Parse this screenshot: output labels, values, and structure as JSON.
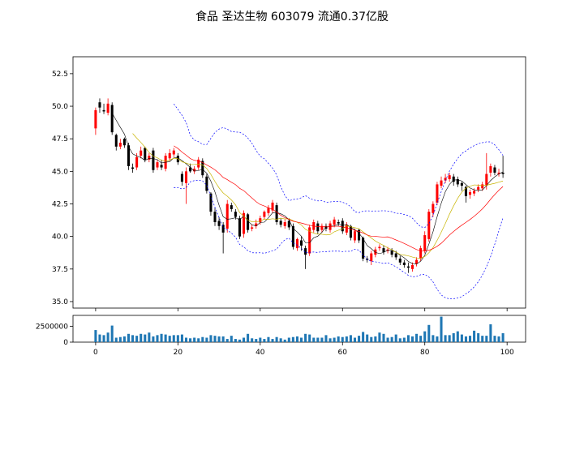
{
  "title": "食品 圣达生物 603079 流通0.37亿股",
  "chart_data": {
    "type": "candlestick",
    "title": "食品 圣达生物 603079 流通0.37亿股",
    "x_ticks": [
      0,
      20,
      40,
      60,
      80,
      100
    ],
    "y_ticks": [
      35.0,
      37.5,
      40.0,
      42.5,
      45.0,
      47.5,
      50.0,
      52.5
    ],
    "y_tick_labels": [
      "35.0",
      "37.5",
      "40.0",
      "42.5",
      "45.0",
      "47.5",
      "50.0",
      "52.5"
    ],
    "ylim": [
      34.5,
      53.8
    ],
    "xlim": [
      -5.5,
      104.5
    ],
    "volume_ticks": [
      0,
      2500000
    ],
    "volume_tick_labels": [
      "0",
      "2500000"
    ],
    "volume_ylim": [
      0,
      4200000
    ],
    "colors": {
      "up": "#ff0000",
      "down": "#000000",
      "volume": "#1f77b4",
      "ma_short": "#000000",
      "ma_mid": "#c8b400",
      "ma_long": "#ff0000",
      "bollinger": "#0000ff"
    },
    "close": [
      49.7,
      49.9,
      49.6,
      50.2,
      48.0,
      46.9,
      47.2,
      47.0,
      45.4,
      45.2,
      46.1,
      46.6,
      45.9,
      46.2,
      45.1,
      45.7,
      45.3,
      46.2,
      46.4,
      46.6,
      45.7,
      44.2,
      45.0,
      45.0,
      45.2,
      45.9,
      44.7,
      43.5,
      41.9,
      41.1,
      40.8,
      40.3,
      42.5,
      42.1,
      41.5,
      40.0,
      41.8,
      40.5,
      40.7,
      41.0,
      41.4,
      41.9,
      42.2,
      42.6,
      41.1,
      40.9,
      41.1,
      40.7,
      39.2,
      39.8,
      39.3,
      38.6,
      40.7,
      41.1,
      40.4,
      40.8,
      40.6,
      41.0,
      41.3,
      41.0,
      40.4,
      40.9,
      39.9,
      40.4,
      39.7,
      38.3,
      38.2,
      38.7,
      39.0,
      39.2,
      38.8,
      39.0,
      38.6,
      38.4,
      38.0,
      37.8,
      37.6,
      37.8,
      38.2,
      39.1,
      40.1,
      41.9,
      42.5,
      44.0,
      44.3,
      44.5,
      44.7,
      44.2,
      44.0,
      43.9,
      43.1,
      43.4,
      43.5,
      43.8,
      44.0,
      44.8,
      45.4,
      44.9,
      44.9,
      44.8
    ],
    "open": [
      48.3,
      50.3,
      49.7,
      49.5,
      50.1,
      47.8,
      46.9,
      47.5,
      47.0,
      45.3,
      45.3,
      46.2,
      46.8,
      45.9,
      46.6,
      45.3,
      45.5,
      45.2,
      46.0,
      46.3,
      46.2,
      44.8,
      44.1,
      45.3,
      45.0,
      45.3,
      45.8,
      44.6,
      43.3,
      41.9,
      41.2,
      40.9,
      40.6,
      42.4,
      41.9,
      41.4,
      40.2,
      41.7,
      40.6,
      40.8,
      41.1,
      41.5,
      41.8,
      42.0,
      42.4,
      41.2,
      40.8,
      41.2,
      40.8,
      39.1,
      39.7,
      39.1,
      38.7,
      40.5,
      41.0,
      40.5,
      40.8,
      40.5,
      40.9,
      41.1,
      41.2,
      40.3,
      40.8,
      39.7,
      40.5,
      39.9,
      38.3,
      38.1,
      38.6,
      39.1,
      39.1,
      38.9,
      38.9,
      38.7,
      38.3,
      38.0,
      37.7,
      37.5,
      37.9,
      38.3,
      38.9,
      39.8,
      41.8,
      42.6,
      43.9,
      44.3,
      44.4,
      44.6,
      44.4,
      44.1,
      43.8,
      43.2,
      43.3,
      43.6,
      43.7,
      43.9,
      44.9,
      45.3,
      44.8,
      44.9
    ],
    "high": [
      49.9,
      50.6,
      50.2,
      50.6,
      50.3,
      47.9,
      47.5,
      47.6,
      47.2,
      45.6,
      46.4,
      46.9,
      46.9,
      46.4,
      46.8,
      45.9,
      45.9,
      46.4,
      46.7,
      46.8,
      46.4,
      45.0,
      45.3,
      45.6,
      45.4,
      46.1,
      46.0,
      44.8,
      43.4,
      42.2,
      41.5,
      41.1,
      42.8,
      42.6,
      42.1,
      41.6,
      42.0,
      41.8,
      40.9,
      41.3,
      41.6,
      42.0,
      42.4,
      42.8,
      42.6,
      41.4,
      41.3,
      41.4,
      41.0,
      39.9,
      40.0,
      39.3,
      40.9,
      41.3,
      41.2,
      41.0,
      41.0,
      41.2,
      41.5,
      41.3,
      41.4,
      41.1,
      40.9,
      40.6,
      40.6,
      40.0,
      38.5,
      38.9,
      39.2,
      39.4,
      39.3,
      39.2,
      39.1,
      38.9,
      38.5,
      38.2,
      38.0,
      38.0,
      38.4,
      39.3,
      40.4,
      42.1,
      42.7,
      44.2,
      44.6,
      44.8,
      44.9,
      44.8,
      44.6,
      44.2,
      43.9,
      43.6,
      43.7,
      44.0,
      44.2,
      46.4,
      45.6,
      45.5,
      45.2,
      46.2
    ],
    "low": [
      47.8,
      49.5,
      49.4,
      49.3,
      47.8,
      46.6,
      46.7,
      46.8,
      45.1,
      44.9,
      45.1,
      46.0,
      45.7,
      45.7,
      44.9,
      45.1,
      45.1,
      45.0,
      45.8,
      46.1,
      45.5,
      43.9,
      42.5,
      44.9,
      44.8,
      45.1,
      44.5,
      43.3,
      41.6,
      40.8,
      40.5,
      38.7,
      40.3,
      41.9,
      41.3,
      39.8,
      39.9,
      40.3,
      40.4,
      40.6,
      40.9,
      41.3,
      41.6,
      41.8,
      40.9,
      40.7,
      40.6,
      40.5,
      39.0,
      38.9,
      38.9,
      37.5,
      38.5,
      40.3,
      40.2,
      40.3,
      40.4,
      40.3,
      40.7,
      40.8,
      40.2,
      40.1,
      39.7,
      39.5,
      39.5,
      38.1,
      38.0,
      37.8,
      38.4,
      38.9,
      38.6,
      38.7,
      38.4,
      38.2,
      37.8,
      37.6,
      37.2,
      37.3,
      37.7,
      38.1,
      38.7,
      39.6,
      41.5,
      42.4,
      43.7,
      44.1,
      44.2,
      43.9,
      43.8,
      43.5,
      42.6,
      42.9,
      43.1,
      43.4,
      43.5,
      43.6,
      44.6,
      44.7,
      44.6,
      44.5
    ],
    "volume": [
      1900000,
      1200000,
      1100000,
      1500000,
      2600000,
      700000,
      800000,
      900000,
      1300000,
      1100000,
      1000000,
      1300000,
      1200000,
      1500000,
      900000,
      1100000,
      1300000,
      1200000,
      1000000,
      1100000,
      1100000,
      1200000,
      700000,
      600000,
      700000,
      600000,
      800000,
      700000,
      1100000,
      1000000,
      900000,
      900000,
      500000,
      1000000,
      500000,
      400000,
      700000,
      1300000,
      600000,
      500000,
      700000,
      500000,
      800000,
      500000,
      800000,
      600000,
      400000,
      700000,
      800000,
      900000,
      700000,
      1300000,
      1200000,
      700000,
      700000,
      700000,
      1100000,
      600000,
      700000,
      900000,
      800000,
      900000,
      1100000,
      700000,
      1000000,
      1600000,
      1200000,
      800000,
      900000,
      1500000,
      1300000,
      700000,
      800000,
      1200000,
      600000,
      700000,
      1100000,
      900000,
      1300000,
      1000000,
      1700000,
      2700000,
      1100000,
      900000,
      4000000,
      1100000,
      1100000,
      1400000,
      1700000,
      1200000,
      900000,
      1000000,
      1800000,
      1400000,
      1000000,
      1000000,
      2800000,
      1000000,
      900000,
      1400000
    ]
  }
}
